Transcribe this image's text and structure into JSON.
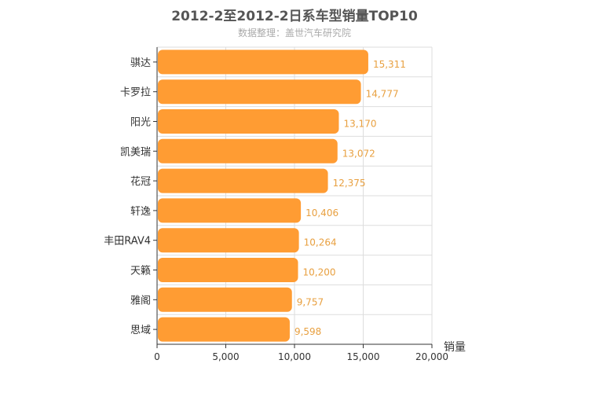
{
  "chart_data": {
    "type": "bar",
    "orientation": "horizontal",
    "title": "2012-2至2012-2日系车型销量TOP10",
    "subtitle": "数据整理：盖世汽车研究院",
    "xlabel": "销量",
    "ylabel": "",
    "categories": [
      "骐达",
      "卡罗拉",
      "阳光",
      "凯美瑞",
      "花冠",
      "轩逸",
      "丰田RAV4",
      "天籁",
      "雅阁",
      "思域"
    ],
    "values": [
      15311,
      14777,
      13170,
      13072,
      12375,
      10406,
      10264,
      10200,
      9757,
      9598
    ],
    "value_labels": [
      "15,311",
      "14,777",
      "13,170",
      "13,072",
      "12,375",
      "10,406",
      "10,264",
      "10,200",
      "9,757",
      "9,598"
    ],
    "xlim": [
      0,
      20000
    ],
    "x_ticks": [
      0,
      5000,
      10000,
      15000,
      20000
    ],
    "x_tick_labels": [
      "0",
      "5,000",
      "10,000",
      "15,000",
      "20,000"
    ],
    "grid": true,
    "bar_color": "#ff9c33",
    "value_label_color": "#e8a040"
  }
}
